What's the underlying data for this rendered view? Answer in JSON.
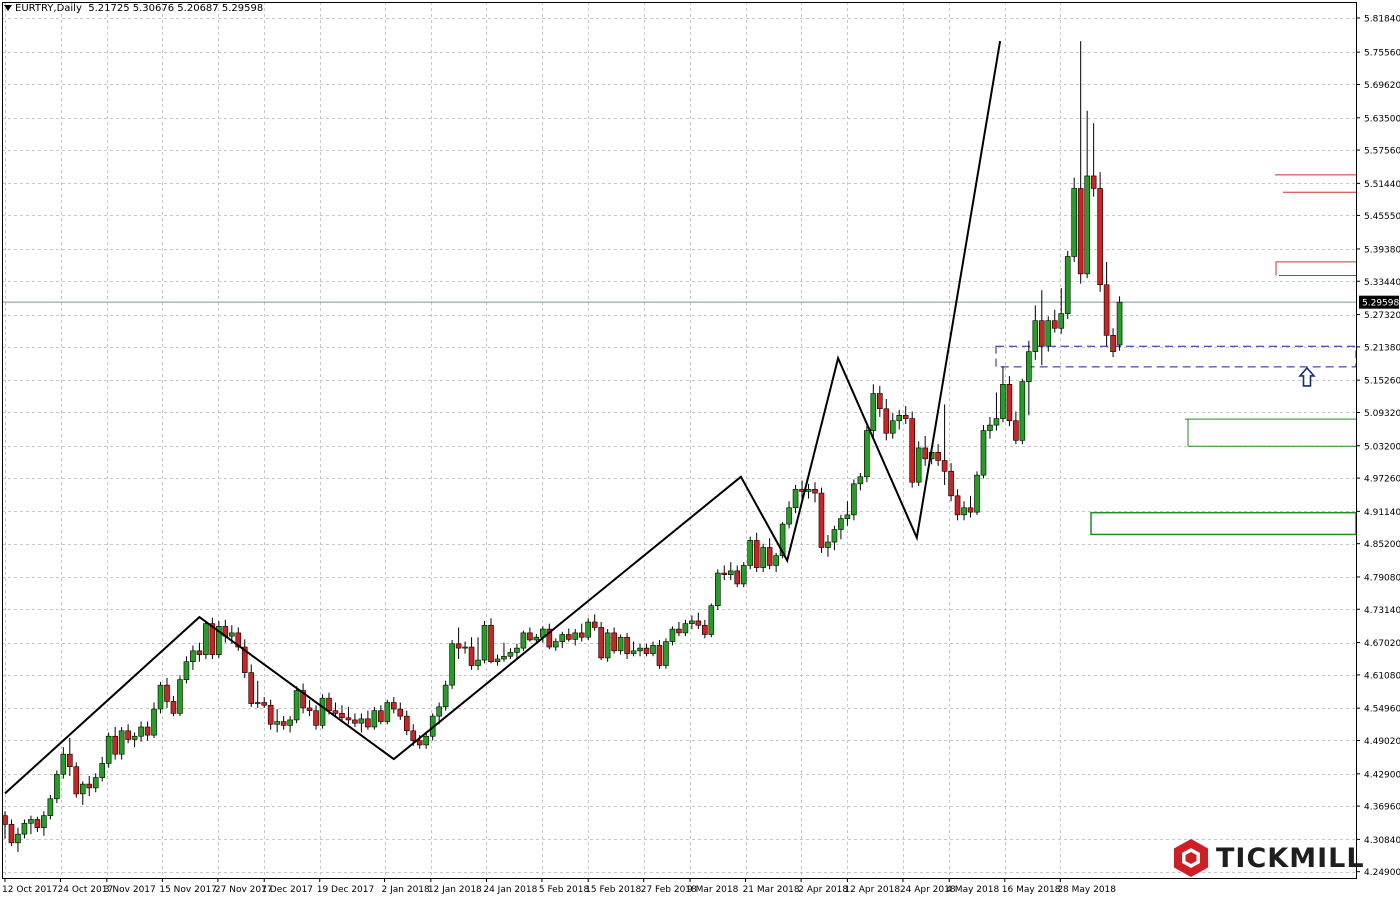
{
  "header": {
    "symbol_label": "EURTRY,Daily",
    "ohlc": "5.21725 5.30676 5.20687 5.29598"
  },
  "brand": {
    "name": "TICKMILL"
  },
  "colors": {
    "bull": "#22a022",
    "bear": "#d32020",
    "grid": "#c8c8c8",
    "zigzag": "#000000",
    "current_line": "#7a9a9a",
    "resistance": "#d33030",
    "support": "#1f8f1f",
    "zone": "#1a1aa0",
    "arrow": "#1c2a80"
  },
  "chart_data": {
    "type": "candlestick",
    "symbol": "EURTRY",
    "timeframe": "Daily",
    "ylim": [
      4.2429,
      5.8184
    ],
    "price_ticks": [
      "5.81840",
      "5.75560",
      "5.69620",
      "5.63500",
      "5.57560",
      "5.51440",
      "5.45550",
      "5.39380",
      "5.33440",
      "5.27320",
      "5.21380",
      "5.15260",
      "5.09320",
      "5.03200",
      "4.97260",
      "4.91140",
      "4.85200",
      "4.79080",
      "4.73140",
      "4.67020",
      "4.61080",
      "4.54960",
      "4.49020",
      "4.42900",
      "4.36960",
      "4.30840",
      "4.24900"
    ],
    "date_ticks": [
      "12 Oct 2017",
      "24 Oct 2017",
      "3 Nov 2017",
      "15 Nov 2017",
      "27 Nov 2017",
      "7 Dec 2017",
      "19 Dec 2017",
      "2 Jan 2018",
      "12 Jan 2018",
      "24 Jan 2018",
      "5 Feb 2018",
      "15 Feb 2018",
      "27 Feb 2018",
      "9 Mar 2018",
      "21 Mar 2018",
      "2 Apr 2018",
      "12 Apr 2018",
      "24 Apr 2018",
      "4 May 2018",
      "16 May 2018",
      "28 May 2018"
    ],
    "current_price": 5.29598,
    "current_price_label": "5.29598",
    "zigzag": [
      {
        "date": "12 Oct 2017",
        "price": 4.393
      },
      {
        "date": "23 Nov 2017",
        "price": 4.717
      },
      {
        "date": "4 Jan 2018",
        "price": 4.456
      },
      {
        "date": "20 Mar 2018",
        "price": 4.975
      },
      {
        "date": "30 Mar 2018",
        "price": 4.821
      },
      {
        "date": "10 Apr 2018",
        "price": 5.193
      },
      {
        "date": "27 Apr 2018",
        "price": 4.863
      },
      {
        "date": "15 May 2018",
        "price": 5.776
      }
    ],
    "resistance_levels": [
      5.53,
      5.498,
      5.37,
      5.345
    ],
    "support_levels": [
      5.081,
      5.031,
      4.909,
      4.869
    ],
    "demand_zone": [
      4.869,
      4.909
    ],
    "retest_zone": [
      5.177,
      5.215
    ],
    "candles": [
      {
        "o": 4.352,
        "h": 4.36,
        "l": 4.31,
        "c": 4.336
      },
      {
        "o": 4.336,
        "h": 4.345,
        "l": 4.296,
        "c": 4.302
      },
      {
        "o": 4.302,
        "h": 4.33,
        "l": 4.285,
        "c": 4.318
      },
      {
        "o": 4.318,
        "h": 4.345,
        "l": 4.31,
        "c": 4.338
      },
      {
        "o": 4.338,
        "h": 4.352,
        "l": 4.318,
        "c": 4.345
      },
      {
        "o": 4.345,
        "h": 4.35,
        "l": 4.322,
        "c": 4.33
      },
      {
        "o": 4.33,
        "h": 4.36,
        "l": 4.315,
        "c": 4.352
      },
      {
        "o": 4.352,
        "h": 4.39,
        "l": 4.345,
        "c": 4.383
      },
      {
        "o": 4.383,
        "h": 4.435,
        "l": 4.375,
        "c": 4.428
      },
      {
        "o": 4.428,
        "h": 4.478,
        "l": 4.42,
        "c": 4.465
      },
      {
        "o": 4.465,
        "h": 4.495,
        "l": 4.425,
        "c": 4.442
      },
      {
        "o": 4.442,
        "h": 4.45,
        "l": 4.385,
        "c": 4.392
      },
      {
        "o": 4.392,
        "h": 4.415,
        "l": 4.372,
        "c": 4.41
      },
      {
        "o": 4.41,
        "h": 4.425,
        "l": 4.388,
        "c": 4.403
      },
      {
        "o": 4.403,
        "h": 4.43,
        "l": 4.395,
        "c": 4.422
      },
      {
        "o": 4.422,
        "h": 4.46,
        "l": 4.415,
        "c": 4.448
      },
      {
        "o": 4.448,
        "h": 4.505,
        "l": 4.44,
        "c": 4.498
      },
      {
        "o": 4.498,
        "h": 4.515,
        "l": 4.455,
        "c": 4.465
      },
      {
        "o": 4.465,
        "h": 4.515,
        "l": 4.455,
        "c": 4.508
      },
      {
        "o": 4.508,
        "h": 4.52,
        "l": 4.485,
        "c": 4.492
      },
      {
        "o": 4.492,
        "h": 4.505,
        "l": 4.478,
        "c": 4.498
      },
      {
        "o": 4.498,
        "h": 4.525,
        "l": 4.488,
        "c": 4.515
      },
      {
        "o": 4.515,
        "h": 4.525,
        "l": 4.49,
        "c": 4.5
      },
      {
        "o": 4.5,
        "h": 4.56,
        "l": 4.495,
        "c": 4.548
      },
      {
        "o": 4.548,
        "h": 4.598,
        "l": 4.54,
        "c": 4.592
      },
      {
        "o": 4.592,
        "h": 4.605,
        "l": 4.55,
        "c": 4.562
      },
      {
        "o": 4.562,
        "h": 4.572,
        "l": 4.535,
        "c": 4.54
      },
      {
        "o": 4.54,
        "h": 4.61,
        "l": 4.535,
        "c": 4.602
      },
      {
        "o": 4.602,
        "h": 4.645,
        "l": 4.595,
        "c": 4.635
      },
      {
        "o": 4.635,
        "h": 4.665,
        "l": 4.62,
        "c": 4.655
      },
      {
        "o": 4.655,
        "h": 4.67,
        "l": 4.635,
        "c": 4.648
      },
      {
        "o": 4.648,
        "h": 4.71,
        "l": 4.64,
        "c": 4.705
      },
      {
        "o": 4.705,
        "h": 4.716,
        "l": 4.64,
        "c": 4.648
      },
      {
        "o": 4.648,
        "h": 4.71,
        "l": 4.642,
        "c": 4.7
      },
      {
        "o": 4.7,
        "h": 4.712,
        "l": 4.67,
        "c": 4.682
      },
      {
        "o": 4.682,
        "h": 4.702,
        "l": 4.668,
        "c": 4.688
      },
      {
        "o": 4.688,
        "h": 4.698,
        "l": 4.655,
        "c": 4.662
      },
      {
        "o": 4.662,
        "h": 4.676,
        "l": 4.605,
        "c": 4.615
      },
      {
        "o": 4.615,
        "h": 4.63,
        "l": 4.552,
        "c": 4.558
      },
      {
        "o": 4.558,
        "h": 4.6,
        "l": 4.55,
        "c": 4.56
      },
      {
        "o": 4.56,
        "h": 4.57,
        "l": 4.55,
        "c": 4.555
      },
      {
        "o": 4.555,
        "h": 4.565,
        "l": 4.51,
        "c": 4.52
      },
      {
        "o": 4.52,
        "h": 4.548,
        "l": 4.505,
        "c": 4.525
      },
      {
        "o": 4.525,
        "h": 4.535,
        "l": 4.51,
        "c": 4.518
      },
      {
        "o": 4.518,
        "h": 4.535,
        "l": 4.505,
        "c": 4.528
      },
      {
        "o": 4.528,
        "h": 4.59,
        "l": 4.522,
        "c": 4.582
      },
      {
        "o": 4.582,
        "h": 4.595,
        "l": 4.54,
        "c": 4.55
      },
      {
        "o": 4.55,
        "h": 4.565,
        "l": 4.535,
        "c": 4.545
      },
      {
        "o": 4.545,
        "h": 4.555,
        "l": 4.51,
        "c": 4.518
      },
      {
        "o": 4.518,
        "h": 4.575,
        "l": 4.512,
        "c": 4.568
      },
      {
        "o": 4.568,
        "h": 4.578,
        "l": 4.538,
        "c": 4.545
      },
      {
        "o": 4.545,
        "h": 4.56,
        "l": 4.535,
        "c": 4.54
      },
      {
        "o": 4.54,
        "h": 4.555,
        "l": 4.525,
        "c": 4.532
      },
      {
        "o": 4.532,
        "h": 4.552,
        "l": 4.52,
        "c": 4.528
      },
      {
        "o": 4.528,
        "h": 4.54,
        "l": 4.515,
        "c": 4.522
      },
      {
        "o": 4.522,
        "h": 4.54,
        "l": 4.505,
        "c": 4.53
      },
      {
        "o": 4.53,
        "h": 4.545,
        "l": 4.51,
        "c": 4.515
      },
      {
        "o": 4.515,
        "h": 4.552,
        "l": 4.51,
        "c": 4.545
      },
      {
        "o": 4.545,
        "h": 4.555,
        "l": 4.52,
        "c": 4.525
      },
      {
        "o": 4.525,
        "h": 4.565,
        "l": 4.52,
        "c": 4.56
      },
      {
        "o": 4.56,
        "h": 4.57,
        "l": 4.54,
        "c": 4.548
      },
      {
        "o": 4.548,
        "h": 4.56,
        "l": 4.528,
        "c": 4.535
      },
      {
        "o": 4.535,
        "h": 4.545,
        "l": 4.5,
        "c": 4.508
      },
      {
        "o": 4.508,
        "h": 4.52,
        "l": 4.48,
        "c": 4.49
      },
      {
        "o": 4.49,
        "h": 4.5,
        "l": 4.475,
        "c": 4.482
      },
      {
        "o": 4.482,
        "h": 4.505,
        "l": 4.475,
        "c": 4.498
      },
      {
        "o": 4.498,
        "h": 4.54,
        "l": 4.49,
        "c": 4.535
      },
      {
        "o": 4.535,
        "h": 4.56,
        "l": 4.52,
        "c": 4.552
      },
      {
        "o": 4.552,
        "h": 4.6,
        "l": 4.545,
        "c": 4.592
      },
      {
        "o": 4.592,
        "h": 4.675,
        "l": 4.585,
        "c": 4.668
      },
      {
        "o": 4.668,
        "h": 4.698,
        "l": 4.64,
        "c": 4.66
      },
      {
        "o": 4.66,
        "h": 4.672,
        "l": 4.65,
        "c": 4.662
      },
      {
        "o": 4.662,
        "h": 4.68,
        "l": 4.62,
        "c": 4.628
      },
      {
        "o": 4.628,
        "h": 4.68,
        "l": 4.62,
        "c": 4.638
      },
      {
        "o": 4.638,
        "h": 4.71,
        "l": 4.632,
        "c": 4.702
      },
      {
        "o": 4.702,
        "h": 4.715,
        "l": 4.632,
        "c": 4.635
      },
      {
        "o": 4.635,
        "h": 4.648,
        "l": 4.628,
        "c": 4.64
      },
      {
        "o": 4.64,
        "h": 4.67,
        "l": 4.635,
        "c": 4.645
      },
      {
        "o": 4.645,
        "h": 4.66,
        "l": 4.64,
        "c": 4.652
      },
      {
        "o": 4.652,
        "h": 4.668,
        "l": 4.64,
        "c": 4.66
      },
      {
        "o": 4.66,
        "h": 4.692,
        "l": 4.655,
        "c": 4.688
      },
      {
        "o": 4.688,
        "h": 4.698,
        "l": 4.672,
        "c": 4.675
      },
      {
        "o": 4.675,
        "h": 4.686,
        "l": 4.668,
        "c": 4.68
      },
      {
        "o": 4.68,
        "h": 4.7,
        "l": 4.67,
        "c": 4.695
      },
      {
        "o": 4.695,
        "h": 4.705,
        "l": 4.658,
        "c": 4.662
      },
      {
        "o": 4.662,
        "h": 4.678,
        "l": 4.655,
        "c": 4.672
      },
      {
        "o": 4.672,
        "h": 4.69,
        "l": 4.66,
        "c": 4.685
      },
      {
        "o": 4.685,
        "h": 4.696,
        "l": 4.672,
        "c": 4.676
      },
      {
        "o": 4.676,
        "h": 4.695,
        "l": 4.665,
        "c": 4.688
      },
      {
        "o": 4.688,
        "h": 4.705,
        "l": 4.672,
        "c": 4.68
      },
      {
        "o": 4.68,
        "h": 4.715,
        "l": 4.675,
        "c": 4.708
      },
      {
        "o": 4.708,
        "h": 4.722,
        "l": 4.692,
        "c": 4.698
      },
      {
        "o": 4.698,
        "h": 4.708,
        "l": 4.638,
        "c": 4.642
      },
      {
        "o": 4.642,
        "h": 4.695,
        "l": 4.635,
        "c": 4.688
      },
      {
        "o": 4.688,
        "h": 4.698,
        "l": 4.65,
        "c": 4.655
      },
      {
        "o": 4.655,
        "h": 4.685,
        "l": 4.648,
        "c": 4.68
      },
      {
        "o": 4.68,
        "h": 4.688,
        "l": 4.64,
        "c": 4.65
      },
      {
        "o": 4.65,
        "h": 4.672,
        "l": 4.645,
        "c": 4.655
      },
      {
        "o": 4.655,
        "h": 4.668,
        "l": 4.645,
        "c": 4.66
      },
      {
        "o": 4.66,
        "h": 4.668,
        "l": 4.645,
        "c": 4.65
      },
      {
        "o": 4.65,
        "h": 4.672,
        "l": 4.645,
        "c": 4.665
      },
      {
        "o": 4.665,
        "h": 4.675,
        "l": 4.622,
        "c": 4.628
      },
      {
        "o": 4.628,
        "h": 4.678,
        "l": 4.622,
        "c": 4.672
      },
      {
        "o": 4.672,
        "h": 4.7,
        "l": 4.665,
        "c": 4.695
      },
      {
        "o": 4.695,
        "h": 4.708,
        "l": 4.682,
        "c": 4.688
      },
      {
        "o": 4.688,
        "h": 4.712,
        "l": 4.682,
        "c": 4.705
      },
      {
        "o": 4.705,
        "h": 4.72,
        "l": 4.695,
        "c": 4.71
      },
      {
        "o": 4.71,
        "h": 4.725,
        "l": 4.695,
        "c": 4.702
      },
      {
        "o": 4.702,
        "h": 4.712,
        "l": 4.678,
        "c": 4.685
      },
      {
        "o": 4.685,
        "h": 4.742,
        "l": 4.68,
        "c": 4.738
      },
      {
        "o": 4.738,
        "h": 4.805,
        "l": 4.73,
        "c": 4.798
      },
      {
        "o": 4.798,
        "h": 4.812,
        "l": 4.785,
        "c": 4.795
      },
      {
        "o": 4.795,
        "h": 4.818,
        "l": 4.785,
        "c": 4.802
      },
      {
        "o": 4.802,
        "h": 4.812,
        "l": 4.772,
        "c": 4.778
      },
      {
        "o": 4.778,
        "h": 4.818,
        "l": 4.772,
        "c": 4.812
      },
      {
        "o": 4.812,
        "h": 4.865,
        "l": 4.805,
        "c": 4.858
      },
      {
        "o": 4.858,
        "h": 4.872,
        "l": 4.8,
        "c": 4.808
      },
      {
        "o": 4.808,
        "h": 4.852,
        "l": 4.8,
        "c": 4.845
      },
      {
        "o": 4.845,
        "h": 4.862,
        "l": 4.805,
        "c": 4.812
      },
      {
        "o": 4.812,
        "h": 4.835,
        "l": 4.8,
        "c": 4.83
      },
      {
        "o": 4.83,
        "h": 4.892,
        "l": 4.825,
        "c": 4.888
      },
      {
        "o": 4.888,
        "h": 4.93,
        "l": 4.88,
        "c": 4.918
      },
      {
        "o": 4.918,
        "h": 4.96,
        "l": 4.908,
        "c": 4.952
      },
      {
        "o": 4.952,
        "h": 4.968,
        "l": 4.93,
        "c": 4.948
      },
      {
        "o": 4.948,
        "h": 4.962,
        "l": 4.935,
        "c": 4.952
      },
      {
        "o": 4.952,
        "h": 4.965,
        "l": 4.928,
        "c": 4.945
      },
      {
        "o": 4.945,
        "h": 4.955,
        "l": 4.835,
        "c": 4.845
      },
      {
        "o": 4.845,
        "h": 4.868,
        "l": 4.828,
        "c": 4.855
      },
      {
        "o": 4.855,
        "h": 4.885,
        "l": 4.84,
        "c": 4.878
      },
      {
        "o": 4.878,
        "h": 4.905,
        "l": 4.86,
        "c": 4.898
      },
      {
        "o": 4.898,
        "h": 4.93,
        "l": 4.885,
        "c": 4.905
      },
      {
        "o": 4.905,
        "h": 4.97,
        "l": 4.895,
        "c": 4.962
      },
      {
        "o": 4.962,
        "h": 4.982,
        "l": 4.95,
        "c": 4.975
      },
      {
        "o": 4.975,
        "h": 5.068,
        "l": 4.965,
        "c": 5.06
      },
      {
        "o": 5.06,
        "h": 5.145,
        "l": 5.045,
        "c": 5.128
      },
      {
        "o": 5.128,
        "h": 5.142,
        "l": 5.085,
        "c": 5.1
      },
      {
        "o": 5.1,
        "h": 5.118,
        "l": 5.042,
        "c": 5.055
      },
      {
        "o": 5.055,
        "h": 5.092,
        "l": 5.045,
        "c": 5.078
      },
      {
        "o": 5.078,
        "h": 5.098,
        "l": 5.062,
        "c": 5.088
      },
      {
        "o": 5.088,
        "h": 5.105,
        "l": 5.072,
        "c": 5.082
      },
      {
        "o": 5.082,
        "h": 5.095,
        "l": 4.955,
        "c": 4.965
      },
      {
        "o": 4.965,
        "h": 5.04,
        "l": 4.958,
        "c": 5.028
      },
      {
        "o": 5.028,
        "h": 5.05,
        "l": 4.995,
        "c": 5.008
      },
      {
        "o": 5.008,
        "h": 5.03,
        "l": 4.998,
        "c": 5.02
      },
      {
        "o": 5.02,
        "h": 5.035,
        "l": 4.995,
        "c": 5.005
      },
      {
        "o": 5.005,
        "h": 5.108,
        "l": 4.96,
        "c": 4.985
      },
      {
        "o": 4.985,
        "h": 5.0,
        "l": 4.93,
        "c": 4.94
      },
      {
        "o": 4.94,
        "h": 4.952,
        "l": 4.895,
        "c": 4.905
      },
      {
        "o": 4.905,
        "h": 4.93,
        "l": 4.895,
        "c": 4.918
      },
      {
        "o": 4.918,
        "h": 4.94,
        "l": 4.9,
        "c": 4.91
      },
      {
        "o": 4.91,
        "h": 4.985,
        "l": 4.905,
        "c": 4.978
      },
      {
        "o": 4.978,
        "h": 5.07,
        "l": 4.972,
        "c": 5.06
      },
      {
        "o": 5.06,
        "h": 5.085,
        "l": 5.045,
        "c": 5.07
      },
      {
        "o": 5.07,
        "h": 5.13,
        "l": 5.06,
        "c": 5.082
      },
      {
        "o": 5.082,
        "h": 5.178,
        "l": 5.075,
        "c": 5.145
      },
      {
        "o": 5.145,
        "h": 5.16,
        "l": 5.068,
        "c": 5.078
      },
      {
        "o": 5.078,
        "h": 5.095,
        "l": 5.035,
        "c": 5.042
      },
      {
        "o": 5.042,
        "h": 5.155,
        "l": 5.035,
        "c": 5.15
      },
      {
        "o": 5.15,
        "h": 5.225,
        "l": 5.088,
        "c": 5.205
      },
      {
        "o": 5.205,
        "h": 5.29,
        "l": 5.19,
        "c": 5.262
      },
      {
        "o": 5.262,
        "h": 5.318,
        "l": 5.18,
        "c": 5.215
      },
      {
        "o": 5.215,
        "h": 5.27,
        "l": 5.205,
        "c": 5.262
      },
      {
        "o": 5.262,
        "h": 5.282,
        "l": 5.24,
        "c": 5.248
      },
      {
        "o": 5.248,
        "h": 5.322,
        "l": 5.238,
        "c": 5.275
      },
      {
        "o": 5.275,
        "h": 5.39,
        "l": 5.265,
        "c": 5.38
      },
      {
        "o": 5.38,
        "h": 5.525,
        "l": 5.37,
        "c": 5.505
      },
      {
        "o": 5.505,
        "h": 5.776,
        "l": 5.33,
        "c": 5.348
      },
      {
        "o": 5.348,
        "h": 5.648,
        "l": 5.34,
        "c": 5.528
      },
      {
        "o": 5.528,
        "h": 5.625,
        "l": 5.49,
        "c": 5.505
      },
      {
        "o": 5.505,
        "h": 5.535,
        "l": 5.315,
        "c": 5.328
      },
      {
        "o": 5.328,
        "h": 5.37,
        "l": 5.215,
        "c": 5.235
      },
      {
        "o": 5.235,
        "h": 5.248,
        "l": 5.195,
        "c": 5.205
      },
      {
        "o": 5.21725,
        "h": 5.30676,
        "l": 5.20687,
        "c": 5.29598
      }
    ]
  }
}
